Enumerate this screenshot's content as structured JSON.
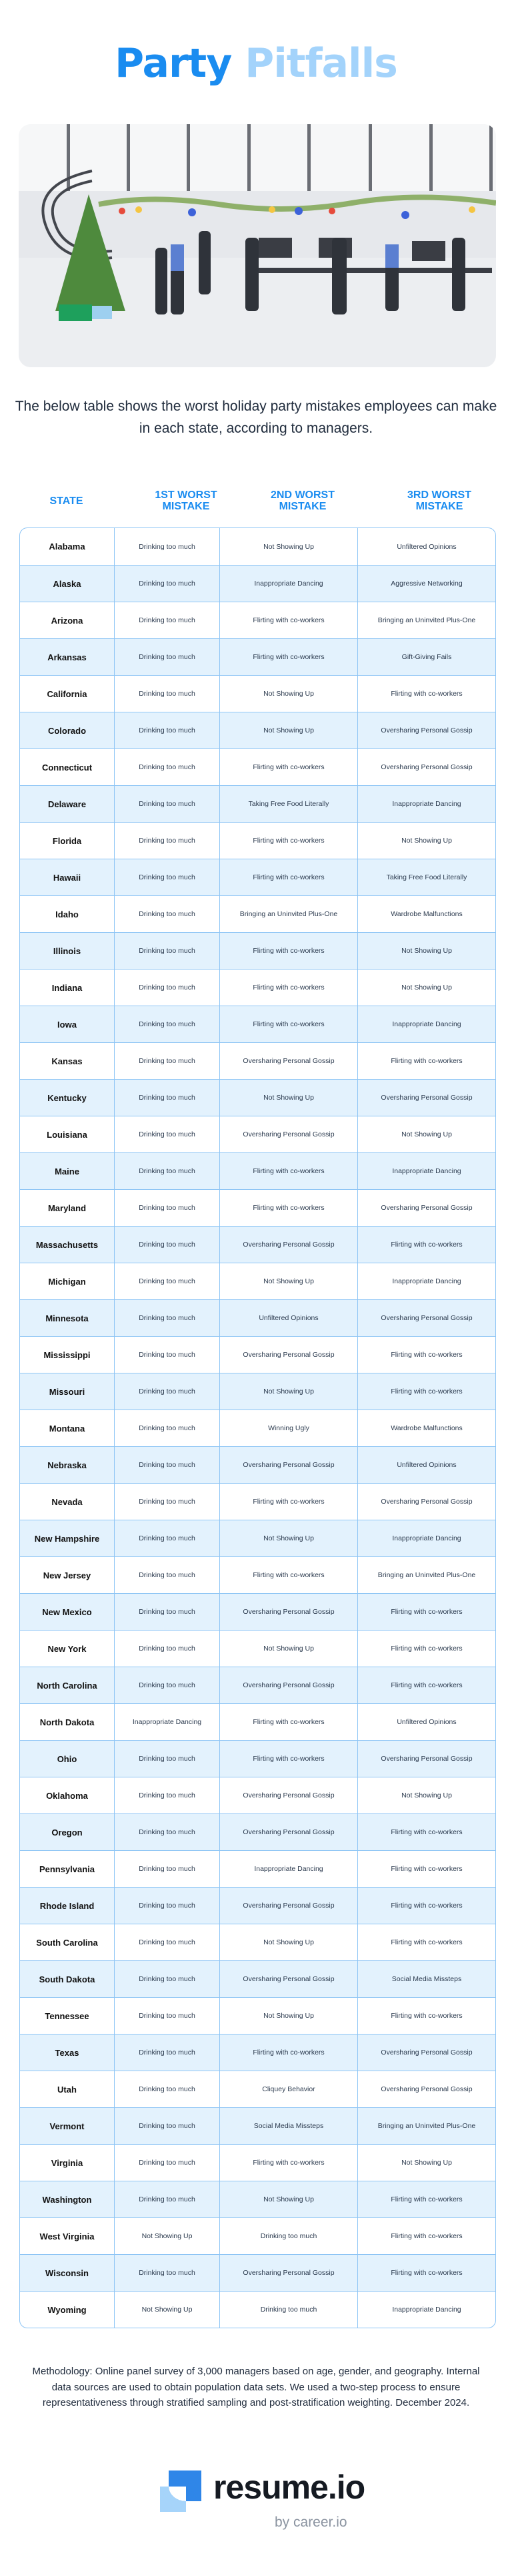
{
  "title": {
    "part1": "Party",
    "part2": "Pitfalls"
  },
  "intro": "The below table shows the worst holiday party mistakes employees can make in each state, according to managers.",
  "table": {
    "headers": [
      "STATE",
      "1ST WORST MISTAKE",
      "2ND WORST MISTAKE",
      "3RD WORST MISTAKE"
    ],
    "rows": [
      [
        "Alabama",
        "Drinking too much",
        "Not Showing Up",
        "Unfiltered Opinions"
      ],
      [
        "Alaska",
        "Drinking too much",
        "Inappropriate Dancing",
        "Aggressive Networking"
      ],
      [
        "Arizona",
        "Drinking too much",
        "Flirting with co-workers",
        "Bringing an Uninvited Plus-One"
      ],
      [
        "Arkansas",
        "Drinking too much",
        "Flirting with co-workers",
        "Gift-Giving Fails"
      ],
      [
        "California",
        "Drinking too much",
        "Not Showing Up",
        "Flirting with co-workers"
      ],
      [
        "Colorado",
        "Drinking too much",
        "Not Showing Up",
        "Oversharing Personal Gossip"
      ],
      [
        "Connecticut",
        "Drinking too much",
        "Flirting with co-workers",
        "Oversharing Personal Gossip"
      ],
      [
        "Delaware",
        "Drinking too much",
        "Taking Free Food Literally",
        "Inappropriate Dancing"
      ],
      [
        "Florida",
        "Drinking too much",
        "Flirting with co-workers",
        "Not Showing Up"
      ],
      [
        "Hawaii",
        "Drinking too much",
        "Flirting with co-workers",
        "Taking Free Food Literally"
      ],
      [
        "Idaho",
        "Drinking too much",
        "Bringing an Uninvited Plus-One",
        "Wardrobe Malfunctions"
      ],
      [
        "Illinois",
        "Drinking too much",
        "Flirting with co-workers",
        "Not Showing Up"
      ],
      [
        "Indiana",
        "Drinking too much",
        "Flirting with co-workers",
        "Not Showing Up"
      ],
      [
        "Iowa",
        "Drinking too much",
        "Flirting with co-workers",
        "Inappropriate Dancing"
      ],
      [
        "Kansas",
        "Drinking too much",
        "Oversharing Personal Gossip",
        "Flirting with co-workers"
      ],
      [
        "Kentucky",
        "Drinking too much",
        "Not Showing Up",
        "Oversharing Personal Gossip"
      ],
      [
        "Louisiana",
        "Drinking too much",
        "Oversharing Personal Gossip",
        "Not Showing Up"
      ],
      [
        "Maine",
        "Drinking too much",
        "Flirting with co-workers",
        "Inappropriate Dancing"
      ],
      [
        "Maryland",
        "Drinking too much",
        "Flirting with co-workers",
        "Oversharing Personal Gossip"
      ],
      [
        "Massachusetts",
        "Drinking too much",
        "Oversharing Personal Gossip",
        "Flirting with co-workers"
      ],
      [
        "Michigan",
        "Drinking too much",
        "Not Showing Up",
        "Inappropriate Dancing"
      ],
      [
        "Minnesota",
        "Drinking too much",
        "Unfiltered Opinions",
        "Oversharing Personal Gossip"
      ],
      [
        "Mississippi",
        "Drinking too much",
        "Oversharing Personal Gossip",
        "Flirting with co-workers"
      ],
      [
        "Missouri",
        "Drinking too much",
        "Not Showing Up",
        "Flirting with co-workers"
      ],
      [
        "Montana",
        "Drinking too much",
        "Winning Ugly",
        "Wardrobe Malfunctions"
      ],
      [
        "Nebraska",
        "Drinking too much",
        "Oversharing Personal Gossip",
        "Unfiltered Opinions"
      ],
      [
        "Nevada",
        "Drinking too much",
        "Flirting with co-workers",
        "Oversharing Personal Gossip"
      ],
      [
        "New Hampshire",
        "Drinking too much",
        "Not Showing Up",
        "Inappropriate Dancing"
      ],
      [
        "New Jersey",
        "Drinking too much",
        "Flirting with co-workers",
        "Bringing an Uninvited Plus-One"
      ],
      [
        "New Mexico",
        "Drinking too much",
        "Oversharing Personal Gossip",
        "Flirting with co-workers"
      ],
      [
        "New York",
        "Drinking too much",
        "Not Showing Up",
        "Flirting with co-workers"
      ],
      [
        "North Carolina",
        "Drinking too much",
        "Oversharing Personal Gossip",
        "Flirting with co-workers"
      ],
      [
        "North Dakota",
        "Inappropriate Dancing",
        "Flirting with co-workers",
        "Unfiltered Opinions"
      ],
      [
        "Ohio",
        "Drinking too much",
        "Flirting with co-workers",
        "Oversharing Personal Gossip"
      ],
      [
        "Oklahoma",
        "Drinking too much",
        "Oversharing Personal Gossip",
        "Not Showing Up"
      ],
      [
        "Oregon",
        "Drinking too much",
        "Oversharing Personal Gossip",
        "Flirting with co-workers"
      ],
      [
        "Pennsylvania",
        "Drinking too much",
        "Inappropriate Dancing",
        "Flirting with co-workers"
      ],
      [
        "Rhode Island",
        "Drinking too much",
        "Oversharing Personal Gossip",
        "Flirting with co-workers"
      ],
      [
        "South Carolina",
        "Drinking too much",
        "Not Showing Up",
        "Flirting with co-workers"
      ],
      [
        "South Dakota",
        "Drinking too much",
        "Oversharing Personal Gossip",
        "Social Media Missteps"
      ],
      [
        "Tennessee",
        "Drinking too much",
        "Not Showing Up",
        "Flirting with co-workers"
      ],
      [
        "Texas",
        "Drinking too much",
        "Flirting with co-workers",
        "Oversharing Personal Gossip"
      ],
      [
        "Utah",
        "Drinking too much",
        "Cliquey Behavior",
        "Oversharing Personal Gossip"
      ],
      [
        "Vermont",
        "Drinking too much",
        "Social Media Missteps",
        "Bringing an Uninvited Plus-One"
      ],
      [
        "Virginia",
        "Drinking too much",
        "Flirting with co-workers",
        "Not Showing Up"
      ],
      [
        "Washington",
        "Drinking too much",
        "Not Showing Up",
        "Flirting with co-workers"
      ],
      [
        "West Virginia",
        "Not Showing Up",
        "Drinking too much",
        "Flirting with co-workers"
      ],
      [
        "Wisconsin",
        "Drinking too much",
        "Oversharing Personal Gossip",
        "Flirting with co-workers"
      ],
      [
        "Wyoming",
        "Not Showing Up",
        "Drinking too much",
        "Inappropriate Dancing"
      ]
    ]
  },
  "methodology": "Methodology: Online panel survey of 3,000 managers based on age, gender, and geography. Internal data sources are used to obtain population data sets. We used a two-step process to ensure representativeness through stratified sampling and post-stratification weighting. December 2024.",
  "logo": {
    "name": "resume.io",
    "sub": "by career.io"
  },
  "colors": {
    "accent": "#1a8cf0",
    "accent_light": "#a3d3fb",
    "row_alt": "#e3f2fd",
    "border": "#8ec5f5"
  }
}
